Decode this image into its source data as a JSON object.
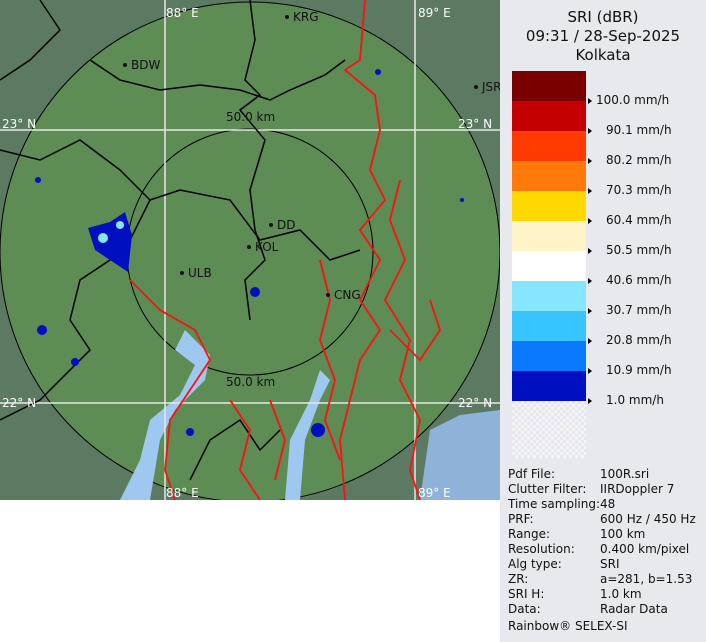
{
  "header": {
    "product": "SRI (dBR)",
    "datetime": "09:31 / 28-Sep-2025",
    "site": "Kolkata"
  },
  "legend": {
    "colors": [
      "#7a0000",
      "#c40000",
      "#ff3a00",
      "#ff7a0a",
      "#ffd800",
      "#fff3c8",
      "#ffffff",
      "#86e6ff",
      "#38c4ff",
      "#0a78ff",
      "#0010c0"
    ],
    "labels": [
      "100.0 mm/h",
      "90.1 mm/h",
      "80.2 mm/h",
      "70.3 mm/h",
      "60.4 mm/h",
      "50.5 mm/h",
      "40.6 mm/h",
      "30.7 mm/h",
      "20.8 mm/h",
      "10.9 mm/h",
      "1.0 mm/h"
    ]
  },
  "info": [
    {
      "key": "Pdf File:",
      "value": "100R.sri"
    },
    {
      "key": "Clutter Filter:",
      "value": "IIRDoppler 7"
    },
    {
      "key": "Time sampling:",
      "value": "48"
    },
    {
      "key": "PRF:",
      "value": "600 Hz / 450 Hz"
    },
    {
      "key": "Range:",
      "value": "100 km"
    },
    {
      "key": "Resolution:",
      "value": "0.400 km/pixel"
    },
    {
      "key": "Alg type:",
      "value": "SRI"
    },
    {
      "key": "ZR:",
      "value": "a=281, b=1.53"
    },
    {
      "key": "SRI H:",
      "value": "1.0 km"
    },
    {
      "key": "Data:",
      "value": "Radar Data"
    }
  ],
  "footer": "Rainbow® SELEX-SI",
  "map": {
    "grid_labels": {
      "lon_88": "88° E",
      "lon_89": "89° E",
      "lat_23": "23° N",
      "lat_22": "22° N"
    },
    "range_rings": {
      "inner": "50.0 km"
    },
    "cities": [
      "BDW",
      "KRG",
      "JSR",
      "DD",
      "KOL",
      "ULB",
      "CNG"
    ],
    "colors": {
      "land_in_range": "#5e8c55",
      "land_out": "#5c7a62",
      "water": "#9fc8f0",
      "border": "#ff1010",
      "district": "#000000"
    }
  }
}
